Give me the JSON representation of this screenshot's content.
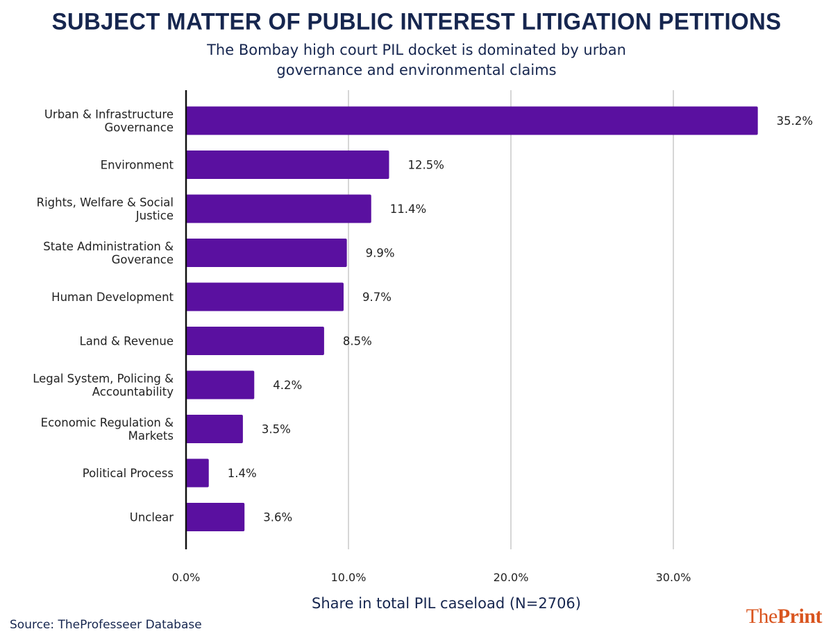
{
  "chart_data": {
    "type": "bar",
    "orientation": "horizontal",
    "title": "SUBJECT MATTER OF PUBLIC INTEREST LITIGATION PETITIONS",
    "subtitle": "The Bombay high court PIL docket is dominated by urban governance and environmental claims",
    "xlabel": "Share in total PIL caseload (N=2706)",
    "ylabel": "",
    "categories": [
      [
        "Urban & Infrastructure",
        "Governance"
      ],
      [
        "Environment"
      ],
      [
        "Rights, Welfare & Social",
        "Justice"
      ],
      [
        "State Administration &",
        "Goverance"
      ],
      [
        "Human Development"
      ],
      [
        "Land & Revenue"
      ],
      [
        "Legal System, Policing &",
        "Accountability"
      ],
      [
        "Economic Regulation &",
        "Markets"
      ],
      [
        "Political Process"
      ],
      [
        "Unclear"
      ]
    ],
    "values": [
      35.2,
      12.5,
      11.4,
      9.9,
      9.7,
      8.5,
      4.2,
      3.5,
      1.4,
      3.6
    ],
    "value_labels": [
      "35.2%",
      "12.5%",
      "11.4%",
      "9.9%",
      "9.7%",
      "8.5%",
      "4.2%",
      "3.5%",
      "1.4%",
      "3.6%"
    ],
    "xlim": [
      0,
      36
    ],
    "xticks": [
      0,
      10,
      20,
      30
    ],
    "xtick_labels": [
      "0.0%",
      "10.0%",
      "20.0%",
      "30.0%"
    ],
    "grid": "vertical",
    "bar_color": "#5a10a0",
    "legend": "none"
  },
  "footer": {
    "source": "Source: TheProfesseer Database",
    "brand_the": "The",
    "brand_print": "Print"
  },
  "colors": {
    "title": "#16264f",
    "brand": "#d9541e"
  }
}
